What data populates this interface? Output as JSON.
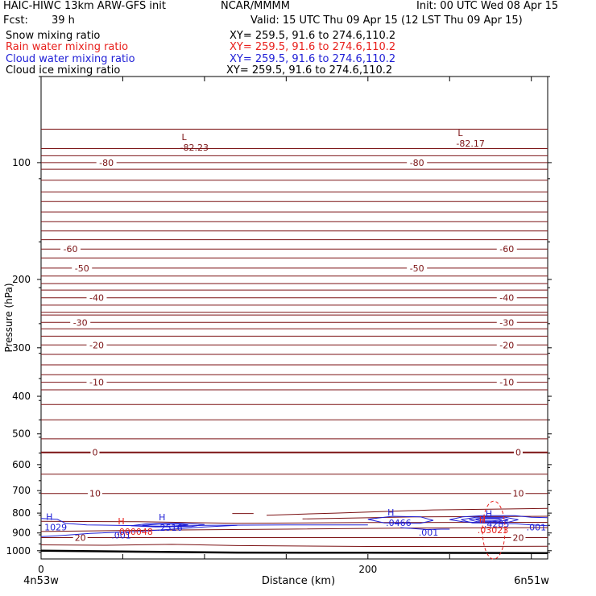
{
  "header": {
    "model": "HAIC-HIWC 13km ARW-GFS init",
    "org": "NCAR/MMMM",
    "init": "Init: 00 UTC Wed 08 Apr 15",
    "fcst_label": "Fcst:",
    "fcst_value": "39 h",
    "valid": "Valid: 15 UTC Thu 09 Apr 15 (12 LST Thu 09 Apr 15)"
  },
  "fields": [
    {
      "name": "Snow mixing ratio",
      "xy": "XY= 259.5, 91.6 to 274.6,110.2",
      "color": "#000000"
    },
    {
      "name": "Rain water mixing ratio",
      "xy": "XY= 259.5, 91.6 to 274.6,110.2",
      "color": "#e8201c"
    },
    {
      "name": "Cloud water mixing ratio",
      "xy": "XY= 259.5, 91.6 to 274.6,110.2",
      "color": "#1e1ed6"
    },
    {
      "name": "Cloud ice mixing ratio",
      "xy": "XY= 259.5, 91.6 to 274.6,110.2",
      "color": "#000000"
    }
  ],
  "colors": {
    "temperature": "#7b1214",
    "cloud_water": "#1e1ed6",
    "rain": "#e8201c",
    "terrain": "#000000"
  },
  "chart_data": {
    "type": "line",
    "xlabel": "Distance (km)",
    "ylabel": "Pressure (hPa)",
    "xlim": [
      0,
      310
    ],
    "ylim": [
      1050,
      60
    ],
    "y_scale": "log",
    "x_ticks": [
      0,
      200
    ],
    "y_ticks": [
      100,
      200,
      300,
      400,
      500,
      600,
      700,
      800,
      900,
      1000
    ],
    "x_endpoints": [
      "4n53w",
      "6n51w"
    ],
    "temperature_contours": [
      {
        "label": "-80",
        "p": [
          100,
          100
        ],
        "label_x": [
          40,
          230
        ]
      },
      {
        "label": "-60",
        "p": [
          167,
          167
        ],
        "label_x": [
          18,
          285
        ]
      },
      {
        "label": "-50",
        "p": [
          187,
          187
        ],
        "label_x": [
          25,
          230
        ]
      },
      {
        "label": "-40",
        "p": [
          223,
          223
        ],
        "label_x": [
          34,
          285
        ]
      },
      {
        "label": "-30",
        "p": [
          258,
          258
        ],
        "label_x": [
          24,
          285
        ]
      },
      {
        "label": "-20",
        "p": [
          295,
          295
        ],
        "label_x": [
          34,
          285
        ]
      },
      {
        "label": "-10",
        "p": [
          368,
          368
        ],
        "label_x": [
          34,
          285
        ]
      },
      {
        "label": "0",
        "p": [
          558,
          558
        ],
        "label_x": [
          33,
          292
        ]
      },
      {
        "label": "10",
        "p": [
          712,
          712
        ],
        "label_x": [
          33,
          292
        ]
      },
      {
        "label": "20",
        "p": [
          925,
          925
        ],
        "label_x": [
          24,
          292
        ]
      }
    ],
    "extrema": [
      {
        "type": "L",
        "value": "-82.23",
        "x": 86,
        "p": 90,
        "series": "temperature"
      },
      {
        "type": "L",
        "value": "-82.17",
        "x": 255,
        "p": 88,
        "series": "temperature"
      },
      {
        "type": "H",
        "value": "1029",
        "x": 3,
        "p": 857,
        "series": "cloud_water"
      },
      {
        "type": "H",
        "value": ".2516",
        "x": 72,
        "p": 860,
        "series": "cloud_water"
      },
      {
        "type": "H",
        "value": ".0466",
        "x": 212,
        "p": 835,
        "series": "cloud_water"
      },
      {
        "type": "H",
        "value": ".4285",
        "x": 272,
        "p": 840,
        "series": "cloud_water"
      },
      {
        "type": "H",
        "value": ".000048",
        "x": 47,
        "p": 880,
        "series": "rain"
      },
      {
        "type": "H",
        "value": ".03023",
        "x": 268,
        "p": 872,
        "series": "rain"
      }
    ],
    "cloud_labels": [
      {
        "value": ".001",
        "x": 43,
        "p": 912
      },
      {
        "value": ".001",
        "x": 231,
        "p": 896
      },
      {
        "value": ".001",
        "x": 297,
        "p": 869
      }
    ]
  }
}
